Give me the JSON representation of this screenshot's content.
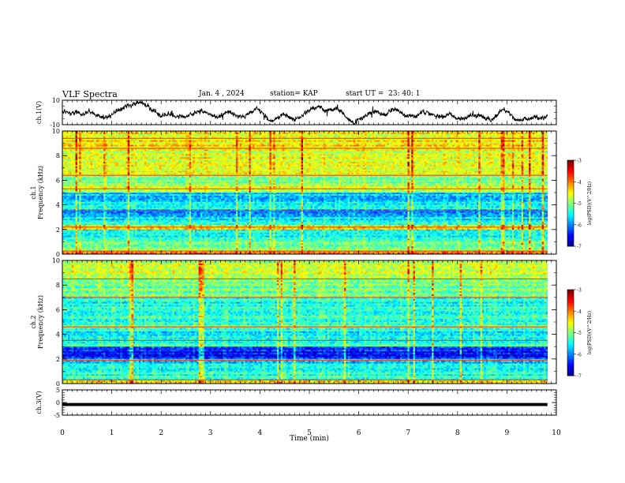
{
  "header": {
    "title": "VLF Spectra",
    "date": "Jan. 4 , 2024",
    "station": "station= KAP",
    "start_ut": "start UT =  23: 40: 1"
  },
  "chart_data": [
    {
      "type": "line",
      "panel": "ch1",
      "ylabel": "ch.1(V)",
      "ylim": [
        -10,
        10
      ],
      "yticks": [
        "10",
        "-10"
      ],
      "xlim": [
        0,
        10
      ],
      "color": "#000000",
      "x_end": 9.82,
      "baseline": -1,
      "description_values": "noise-like waveform fluctuating roughly between -6 and +6 V"
    },
    {
      "type": "heatmap",
      "panel": "ch1_spectrogram",
      "ylabel": "ch.1 Frequency (kHz)",
      "ylim": [
        0,
        10
      ],
      "yticks": [
        "0",
        "2",
        "4",
        "6",
        "8",
        "10"
      ],
      "xlim": [
        0,
        10
      ],
      "x_end": 9.82,
      "band_levels": [
        {
          "f": [
            0.0,
            0.3
          ],
          "level": -4.2
        },
        {
          "f": [
            0.3,
            1.0
          ],
          "level": -5.1
        },
        {
          "f": [
            1.0,
            2.0
          ],
          "level": -5.4
        },
        {
          "f": [
            2.0,
            2.4
          ],
          "level": -4.4
        },
        {
          "f": [
            2.4,
            3.0
          ],
          "level": -5.5
        },
        {
          "f": [
            3.0,
            3.6
          ],
          "level": -5.9
        },
        {
          "f": [
            3.6,
            4.0
          ],
          "level": -5.5
        },
        {
          "f": [
            4.0,
            5.0
          ],
          "level": -5.7
        },
        {
          "f": [
            5.0,
            5.5
          ],
          "level": -4.6
        },
        {
          "f": [
            5.5,
            6.5
          ],
          "level": -5.0
        },
        {
          "f": [
            6.5,
            8.5
          ],
          "level": -4.7
        },
        {
          "f": [
            8.5,
            10.0
          ],
          "level": -4.5
        }
      ],
      "tone_lines_khz": [
        0.25,
        2.2,
        3.5,
        4.9,
        5.3,
        6.4,
        8.6,
        9.4
      ],
      "colorbar": {
        "label": "log(PSD)(V^2/Hz)",
        "range": [
          -7,
          -3
        ],
        "ticks": [
          "-3",
          "-4",
          "-5",
          "-6",
          "-7"
        ]
      }
    },
    {
      "type": "heatmap",
      "panel": "ch2_spectrogram",
      "ylabel": "ch.2 Frequency (kHz)",
      "ylim": [
        0,
        10
      ],
      "yticks": [
        "0",
        "2",
        "4",
        "6",
        "8",
        "10"
      ],
      "xlim": [
        0,
        10
      ],
      "x_end": 9.82,
      "band_levels": [
        {
          "f": [
            0.0,
            0.3
          ],
          "level": -4.4
        },
        {
          "f": [
            0.3,
            1.0
          ],
          "level": -5.3
        },
        {
          "f": [
            1.0,
            2.0
          ],
          "level": -5.6
        },
        {
          "f": [
            2.0,
            3.0
          ],
          "level": -6.4
        },
        {
          "f": [
            3.0,
            3.6
          ],
          "level": -5.3
        },
        {
          "f": [
            3.6,
            4.5
          ],
          "level": -5.5
        },
        {
          "f": [
            4.5,
            5.5
          ],
          "level": -5.3
        },
        {
          "f": [
            5.5,
            7.0
          ],
          "level": -5.4
        },
        {
          "f": [
            7.0,
            8.5
          ],
          "level": -5.1
        },
        {
          "f": [
            8.5,
            10.0
          ],
          "level": -4.7
        }
      ],
      "tone_lines_khz": [
        0.3,
        1.9,
        3.5,
        4.6,
        7.0,
        8.5
      ],
      "colorbar": {
        "label": "log(PSD)(V^2/Hz)",
        "range": [
          -7,
          -3
        ],
        "ticks": [
          "-3",
          "-4",
          "-5",
          "-6",
          "-7"
        ]
      }
    },
    {
      "type": "line",
      "panel": "ch3",
      "ylabel": "ch.3(V)",
      "ylim": [
        -5,
        5
      ],
      "yticks": [
        "5",
        "0",
        "-5"
      ],
      "xlim": [
        0,
        10
      ],
      "x_end": 9.82,
      "values_range": [
        -1.4,
        -0.2
      ],
      "color": "#000000"
    }
  ],
  "xaxis": {
    "label": "Time (min)",
    "ticks": [
      "0",
      "1",
      "2",
      "3",
      "4",
      "5",
      "6",
      "7",
      "8",
      "9",
      "10"
    ]
  }
}
